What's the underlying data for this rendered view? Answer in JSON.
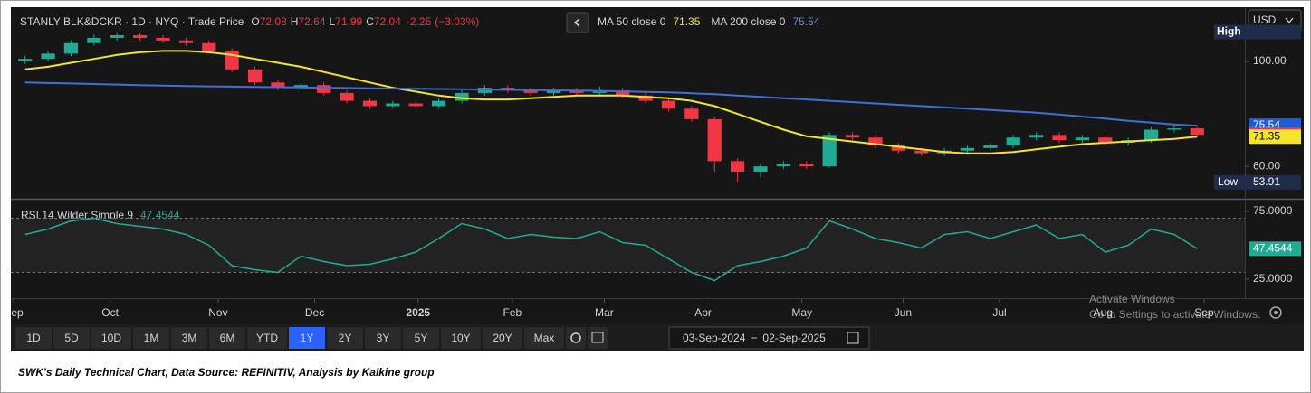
{
  "header": {
    "symbol": "STANLY BLK&DCKR · 1D · NYQ · Trade Price",
    "o_label": "O",
    "open": 72.08,
    "h_label": "H",
    "high": 72.64,
    "l_label": "L",
    "low": 71.99,
    "c_label": "C",
    "close": 72.04,
    "change": -2.25,
    "change_pct": {
      "value": -3.03,
      "label": "(−3.03%)"
    },
    "ma50_label": "MA 50 close 0",
    "ma50": 71.35,
    "ma200_label": "MA 200 close 0",
    "ma200": 75.54,
    "currency": "USD"
  },
  "chart_data": {
    "type": "candlestick",
    "xlim": [
      0,
      52
    ],
    "xticks": [
      {
        "value": 0,
        "label": "Sep"
      },
      {
        "value": 4.2,
        "label": "Oct"
      },
      {
        "value": 8.9,
        "label": "Nov"
      },
      {
        "value": 13.1,
        "label": "Dec"
      },
      {
        "value": 17.6,
        "label": "2025"
      },
      {
        "value": 21.7,
        "label": "Feb"
      },
      {
        "value": 25.7,
        "label": "Mar"
      },
      {
        "value": 30.0,
        "label": "Apr"
      },
      {
        "value": 34.3,
        "label": "May"
      },
      {
        "value": 38.7,
        "label": "Jun"
      },
      {
        "value": 42.9,
        "label": "Jul"
      },
      {
        "value": 47.4,
        "label": "Aug"
      },
      {
        "value": 51.8,
        "label": "Sep"
      }
    ],
    "ylim": [
      48,
      120
    ],
    "yticks": [
      {
        "value": 60,
        "label": "60.00"
      },
      {
        "value": 100,
        "label": "100.00"
      }
    ],
    "up_color": "#22ab94",
    "down_color": "#f23645",
    "candles": [
      {
        "o": 100,
        "h": 102.2,
        "l": 99,
        "c": 101
      },
      {
        "o": 101,
        "h": 104,
        "l": 100,
        "c": 103
      },
      {
        "o": 103,
        "h": 108,
        "l": 102,
        "c": 107
      },
      {
        "o": 107,
        "h": 110.2,
        "l": 106,
        "c": 109
      },
      {
        "o": 109,
        "h": 111.2,
        "l": 108,
        "c": 110
      },
      {
        "o": 110,
        "h": 111,
        "l": 108,
        "c": 109
      },
      {
        "o": 109,
        "h": 110,
        "l": 107,
        "c": 108
      },
      {
        "o": 108,
        "h": 109,
        "l": 106,
        "c": 107
      },
      {
        "o": 107,
        "h": 108,
        "l": 103,
        "c": 104
      },
      {
        "o": 104,
        "h": 105,
        "l": 96,
        "c": 97
      },
      {
        "o": 97,
        "h": 98,
        "l": 91,
        "c": 92
      },
      {
        "o": 92,
        "h": 93,
        "l": 89,
        "c": 90
      },
      {
        "o": 90,
        "h": 92,
        "l": 89,
        "c": 91
      },
      {
        "o": 91,
        "h": 92,
        "l": 87,
        "c": 88
      },
      {
        "o": 88,
        "h": 89,
        "l": 84,
        "c": 85
      },
      {
        "o": 85,
        "h": 86,
        "l": 82,
        "c": 83
      },
      {
        "o": 83,
        "h": 85,
        "l": 82,
        "c": 84
      },
      {
        "o": 84,
        "h": 85,
        "l": 82,
        "c": 83
      },
      {
        "o": 83,
        "h": 86,
        "l": 82,
        "c": 85
      },
      {
        "o": 85,
        "h": 89,
        "l": 84,
        "c": 88
      },
      {
        "o": 88,
        "h": 91,
        "l": 87,
        "c": 90
      },
      {
        "o": 90,
        "h": 91,
        "l": 88,
        "c": 89
      },
      {
        "o": 89,
        "h": 90,
        "l": 87,
        "c": 88
      },
      {
        "o": 88,
        "h": 90,
        "l": 87,
        "c": 89
      },
      {
        "o": 89,
        "h": 90,
        "l": 87,
        "c": 88
      },
      {
        "o": 88,
        "h": 90.5,
        "l": 87,
        "c": 89
      },
      {
        "o": 89,
        "h": 90,
        "l": 86,
        "c": 87
      },
      {
        "o": 87,
        "h": 88,
        "l": 84,
        "c": 85
      },
      {
        "o": 85,
        "h": 86,
        "l": 81,
        "c": 82
      },
      {
        "o": 82,
        "h": 83,
        "l": 77,
        "c": 78
      },
      {
        "o": 78,
        "h": 79,
        "l": 58,
        "c": 62
      },
      {
        "o": 62,
        "h": 63,
        "l": 53.91,
        "c": 58
      },
      {
        "o": 58,
        "h": 61,
        "l": 56,
        "c": 60
      },
      {
        "o": 60,
        "h": 62,
        "l": 59,
        "c": 61
      },
      {
        "o": 61,
        "h": 62,
        "l": 59,
        "c": 60
      },
      {
        "o": 60,
        "h": 73,
        "l": 59.5,
        "c": 72
      },
      {
        "o": 72,
        "h": 73,
        "l": 70,
        "c": 71
      },
      {
        "o": 71,
        "h": 72,
        "l": 67,
        "c": 68
      },
      {
        "o": 68,
        "h": 69,
        "l": 65,
        "c": 66
      },
      {
        "o": 66,
        "h": 67,
        "l": 64,
        "c": 65
      },
      {
        "o": 65,
        "h": 67,
        "l": 64,
        "c": 66
      },
      {
        "o": 66,
        "h": 68,
        "l": 65,
        "c": 67
      },
      {
        "o": 67,
        "h": 69,
        "l": 66,
        "c": 68
      },
      {
        "o": 68,
        "h": 72,
        "l": 67,
        "c": 71
      },
      {
        "o": 71,
        "h": 73,
        "l": 70,
        "c": 72
      },
      {
        "o": 72,
        "h": 73,
        "l": 69,
        "c": 70
      },
      {
        "o": 70,
        "h": 72,
        "l": 69,
        "c": 71
      },
      {
        "o": 71,
        "h": 72,
        "l": 68,
        "c": 69
      },
      {
        "o": 69,
        "h": 71,
        "l": 68,
        "c": 70
      },
      {
        "o": 70,
        "h": 75,
        "l": 69,
        "c": 74
      },
      {
        "o": 74,
        "h": 76,
        "l": 73,
        "c": 74.5
      },
      {
        "o": 74.5,
        "h": 75,
        "l": 71.5,
        "c": 72.04
      }
    ],
    "series": [
      {
        "name": "MA 50",
        "color": "#f5e52a",
        "values": [
          97,
          98,
          99.5,
          101,
          102.5,
          103.5,
          104,
          104,
          103.5,
          102.5,
          101,
          99.5,
          98,
          96,
          94,
          92,
          90,
          88.5,
          87,
          86,
          85.5,
          85.5,
          86,
          86.5,
          87,
          87,
          87,
          86.5,
          86,
          85,
          83,
          80,
          77,
          74,
          71.5,
          70.5,
          69.5,
          68.5,
          67.5,
          66.5,
          65.5,
          65,
          65,
          65.5,
          66.5,
          67.5,
          68.5,
          69,
          69.5,
          70,
          70.5,
          71.35
        ]
      },
      {
        "name": "MA 200",
        "color": "#3f6fd8",
        "values": [
          92,
          91.8,
          91.6,
          91.4,
          91.2,
          91,
          90.8,
          90.6,
          90.5,
          90.4,
          90.3,
          90.2,
          90.1,
          90,
          89.9,
          89.8,
          89.7,
          89.6,
          89.5,
          89.4,
          89.3,
          89.2,
          89.1,
          89,
          88.9,
          88.8,
          88.6,
          88.4,
          88.2,
          87.9,
          87.5,
          87,
          86.5,
          86,
          85.5,
          85,
          84.5,
          84,
          83.5,
          83,
          82.5,
          82,
          81.5,
          81,
          80.5,
          79.8,
          79,
          78.2,
          77.4,
          76.7,
          76,
          75.54
        ]
      }
    ],
    "high_label": "High",
    "low_label": "Low",
    "low_value": 53.91
  },
  "rsi": {
    "label": "RSI 14 Wilder Simple 9",
    "latest": 47.4544,
    "color": "#22ab94",
    "ylim": [
      11,
      83
    ],
    "yticks": [
      {
        "value": 25,
        "label": "25.0000"
      },
      {
        "value": 75,
        "label": "75.0000"
      }
    ],
    "bands": [
      30,
      70
    ],
    "values": [
      58,
      62,
      68,
      70,
      66,
      64,
      62,
      58,
      50,
      35,
      32,
      30,
      42,
      38,
      35,
      36,
      40,
      45,
      55,
      66,
      62,
      55,
      58,
      56,
      55,
      60,
      52,
      50,
      40,
      30,
      24,
      35,
      38,
      42,
      48,
      68,
      62,
      55,
      52,
      48,
      58,
      60,
      55,
      60,
      65,
      55,
      58,
      45,
      50,
      62,
      58,
      47.4544
    ]
  },
  "toolbar": {
    "ranges": [
      "1D",
      "5D",
      "10D",
      "1M",
      "3M",
      "6M",
      "YTD",
      "1Y",
      "2Y",
      "3Y",
      "5Y",
      "10Y",
      "20Y",
      "Max"
    ],
    "selected_range": "1Y",
    "date_from": "03-Sep-2024",
    "date_sep": "−",
    "date_to": "02-Sep-2025"
  },
  "watermark": {
    "title": "Activate Windows",
    "text": "Go to Settings to activate Windows."
  },
  "caption": "SWK's Daily Technical Chart, Data Source: REFINITIV, Analysis by Kalkine group"
}
